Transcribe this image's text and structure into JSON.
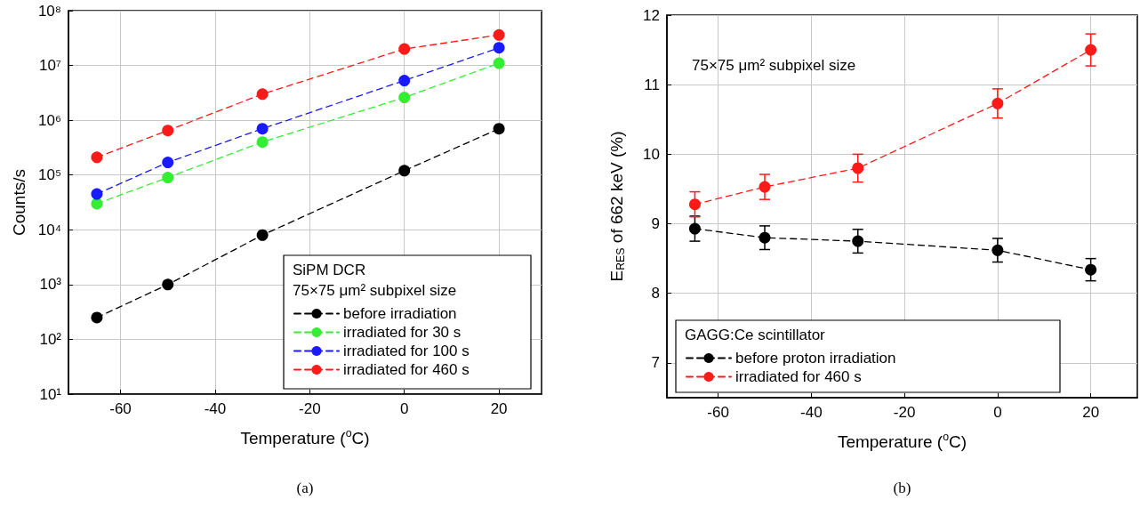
{
  "chart_data": [
    {
      "type": "line",
      "xlabel": "Temperature ($^{o}$C)",
      "ylabel": "Counts/s",
      "legend_title": "SiPM DCR\n75×75 μm² subpixel size",
      "x": [
        -65,
        -50,
        -30,
        0,
        20
      ],
      "series": [
        {
          "name": "before irradiation",
          "color": "#000000",
          "values": [
            250,
            1000,
            8000,
            120000,
            700000
          ]
        },
        {
          "name": "irradiated for 30 s",
          "color": "#33ee33",
          "values": [
            30000,
            90000,
            400000,
            2600000,
            11000000
          ]
        },
        {
          "name": "irradiated for 100 s",
          "color": "#1a1aff",
          "values": [
            45000,
            170000,
            700000,
            5300000,
            21000000
          ]
        },
        {
          "name": "irradiated for 460 s",
          "color": "#ff1a1a",
          "values": [
            210000,
            650000,
            3000000,
            20000000,
            36000000
          ]
        }
      ],
      "log": "y",
      "xlim": [
        -71,
        29
      ],
      "xticks": [
        -60,
        -40,
        -20,
        0,
        20
      ],
      "ylim": [
        10,
        100000000
      ],
      "yticks": [
        {
          "value": 10,
          "label": "10¹"
        },
        {
          "value": 100,
          "label": "10²"
        },
        {
          "value": 1000,
          "label": "10³"
        },
        {
          "value": 10000,
          "label": "10⁴"
        },
        {
          "value": 100000,
          "label": "10⁵"
        },
        {
          "value": 1000000,
          "label": "10⁶"
        },
        {
          "value": 10000000,
          "label": "10⁷"
        },
        {
          "value": 100000000,
          "label": "10⁸"
        }
      ],
      "grid": true,
      "legend": "bottom right",
      "marker": "circle",
      "line_style": "dashed",
      "annotations": [
        "(a)"
      ]
    },
    {
      "type": "line",
      "xlabel": "Temperature ($^{o}$C)",
      "ylabel": "E$_{RES}$ of 662 keV (%)",
      "legend_title": "GAGG:Ce scintillator",
      "x": [
        -65,
        -50,
        -30,
        0,
        20
      ],
      "series": [
        {
          "name": "before proton irradiation",
          "color": "#000000",
          "values": [
            8.93,
            8.8,
            8.75,
            8.62,
            8.34
          ],
          "errors": [
            0.18,
            0.17,
            0.17,
            0.17,
            0.16
          ]
        },
        {
          "name": "irradiated for 460 s",
          "color": "#ff1a1a",
          "values": [
            9.28,
            9.53,
            9.8,
            10.73,
            11.5
          ],
          "errors": [
            0.18,
            0.18,
            0.2,
            0.21,
            0.23
          ]
        }
      ],
      "xlim": [
        -71,
        30
      ],
      "xticks": [
        -60,
        -40,
        -20,
        0,
        20
      ],
      "ylim": [
        6.5,
        12
      ],
      "yticks": [
        7,
        8,
        9,
        10,
        11,
        12
      ],
      "grid": true,
      "legend": "bottom left",
      "marker": "circle",
      "line_style": "dashed",
      "annotations": [
        "75×75 μm² subpixel size",
        "(b)"
      ]
    }
  ]
}
